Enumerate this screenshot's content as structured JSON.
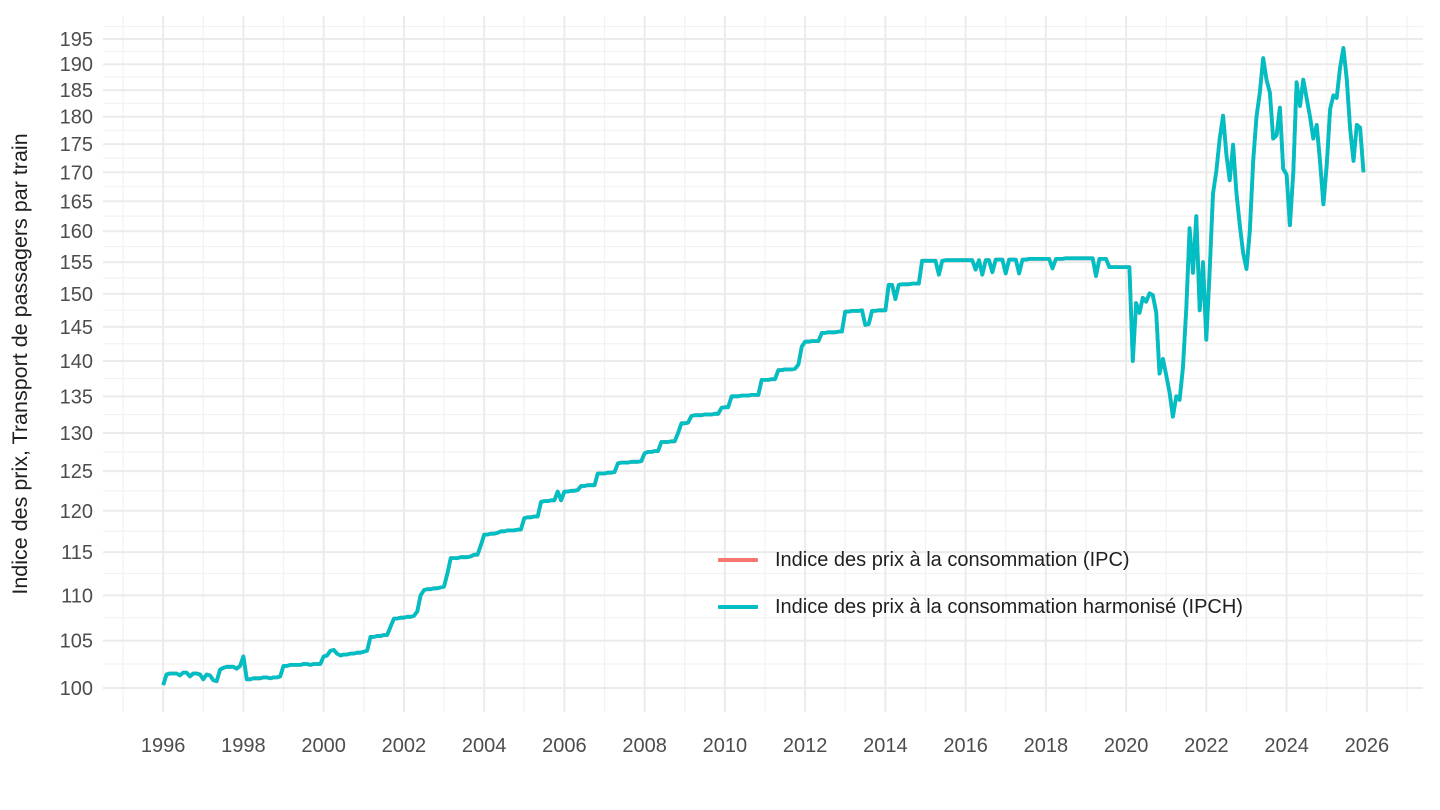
{
  "figure": {
    "legend": {
      "items": [
        {
          "label": "Indice des prix à la consommation (IPC)",
          "color": "#F8766D"
        },
        {
          "label": "Indice des prix à la consommation harmonisé (IPCH)",
          "color": "#00BFC4"
        }
      ]
    },
    "colors": {
      "background": "#ffffff",
      "grid_major": "#EBEBEB",
      "grid_minor": "#F2F2F2",
      "tick_text": "#4d4d4d",
      "axis_title_text": "#1f1f1f"
    }
  },
  "chart_data": {
    "type": "line",
    "title": "",
    "xlabel": "",
    "ylabel": "Indice des prix, Transport de passagers par train",
    "x_ticks": [
      1996,
      1998,
      2000,
      2002,
      2004,
      2006,
      2008,
      2010,
      2012,
      2014,
      2016,
      2018,
      2020,
      2022,
      2024,
      2026
    ],
    "y_ticks": [
      100,
      105,
      110,
      115,
      120,
      125,
      130,
      135,
      140,
      145,
      150,
      155,
      160,
      165,
      170,
      175,
      180,
      185,
      190,
      195
    ],
    "y_scale": "log",
    "grid": true,
    "legend_position": "inside-right-middle",
    "x_range": [
      1994.5,
      2027.4
    ],
    "y_range": [
      97.56,
      199.66
    ],
    "frequency": "monthly",
    "start_year": 1996,
    "end_label": "2025-12",
    "series": [
      {
        "name": "Indice des prix à la consommation (IPC)",
        "color": "#F8766D",
        "fully_occluded_by_ipch": true,
        "values": [
          100.3,
          101.4,
          101.5,
          101.5,
          101.5,
          101.3,
          101.6,
          101.6,
          101.2,
          101.5,
          101.5,
          101.4,
          100.9,
          101.4,
          101.3,
          100.8,
          100.7,
          101.9,
          102.1,
          102.2,
          102.2,
          102.2,
          102.0,
          102.3,
          103.3,
          100.9,
          100.9,
          101.0,
          101.0,
          101.0,
          101.1,
          101.1,
          101.0,
          101.1,
          101.1,
          101.2,
          102.3,
          102.3,
          102.4,
          102.4,
          102.4,
          102.4,
          102.5,
          102.5,
          102.4,
          102.5,
          102.5,
          102.5,
          103.3,
          103.4,
          103.9,
          104.0,
          103.6,
          103.4,
          103.5,
          103.5,
          103.6,
          103.6,
          103.7,
          103.7,
          103.8,
          103.9,
          105.4,
          105.4,
          105.5,
          105.5,
          105.6,
          105.6,
          106.5,
          107.4,
          107.4,
          107.5,
          107.5,
          107.6,
          107.6,
          107.7,
          108.2,
          110.0,
          110.6,
          110.7,
          110.7,
          110.8,
          110.8,
          110.9,
          111.0,
          112.5,
          114.3,
          114.3,
          114.3,
          114.4,
          114.4,
          114.4,
          114.5,
          114.7,
          114.7,
          115.8,
          117.1,
          117.1,
          117.2,
          117.2,
          117.3,
          117.5,
          117.5,
          117.6,
          117.6,
          117.6,
          117.7,
          117.7,
          119.1,
          119.2,
          119.2,
          119.3,
          119.3,
          121.1,
          121.2,
          121.2,
          121.3,
          121.3,
          122.4,
          121.3,
          122.4,
          122.4,
          122.5,
          122.5,
          122.6,
          123.1,
          123.1,
          123.2,
          123.2,
          123.2,
          124.7,
          124.7,
          124.7,
          124.8,
          124.8,
          124.9,
          126.0,
          126.1,
          126.1,
          126.1,
          126.2,
          126.2,
          126.2,
          126.3,
          127.3,
          127.5,
          127.5,
          127.6,
          127.6,
          128.8,
          128.8,
          128.8,
          128.9,
          128.9,
          130.0,
          131.3,
          131.3,
          131.4,
          132.3,
          132.4,
          132.4,
          132.4,
          132.5,
          132.5,
          132.5,
          132.6,
          132.6,
          133.4,
          133.5,
          133.5,
          135.0,
          135.0,
          135.0,
          135.1,
          135.1,
          135.1,
          135.2,
          135.2,
          135.2,
          137.3,
          137.3,
          137.3,
          137.4,
          137.4,
          138.7,
          138.7,
          138.8,
          138.8,
          138.8,
          138.9,
          139.5,
          142.1,
          142.8,
          142.8,
          142.9,
          142.9,
          142.9,
          144.1,
          144.1,
          144.2,
          144.2,
          144.2,
          144.3,
          144.3,
          147.3,
          147.3,
          147.4,
          147.4,
          147.4,
          147.5,
          145.3,
          145.4,
          147.4,
          147.4,
          147.5,
          147.5,
          147.5,
          151.4,
          151.4,
          149.2,
          151.4,
          151.5,
          151.5,
          151.5,
          151.6,
          151.6,
          151.6,
          155.2,
          155.2,
          155.2,
          155.2,
          155.2,
          153.0,
          155.2,
          155.3,
          155.3,
          155.3,
          155.3,
          155.3,
          155.3,
          155.3,
          155.3,
          155.3,
          153.8,
          155.3,
          153.0,
          155.3,
          155.3,
          153.4,
          155.4,
          155.4,
          155.4,
          153.2,
          155.4,
          155.4,
          155.4,
          153.2,
          155.4,
          155.4,
          155.5,
          155.5,
          155.5,
          155.5,
          155.5,
          155.5,
          155.5,
          154.0,
          155.5,
          155.5,
          155.5,
          155.6,
          155.6,
          155.6,
          155.6,
          155.6,
          155.6,
          155.6,
          155.6,
          155.6,
          152.8,
          155.5,
          155.5,
          155.5,
          154.2,
          154.2,
          154.2,
          154.2,
          154.2,
          154.2,
          154.2,
          140.0,
          148.6,
          147.1,
          149.4,
          148.8,
          150.1,
          149.8,
          147.2,
          138.2,
          140.3,
          138.0,
          135.5,
          132.2,
          135.0,
          134.5,
          139.0,
          147.8,
          160.5,
          153.3,
          162.5,
          147.5,
          155.0,
          143.1,
          153.7,
          166.3,
          170.3,
          176.0,
          180.2,
          173.1,
          168.6,
          174.9,
          166.5,
          161.0,
          156.5,
          153.9,
          160.0,
          172.0,
          180.0,
          184.5,
          191.2,
          187.0,
          184.5,
          176.0,
          176.6,
          181.7,
          170.6,
          169.6,
          161.0,
          170.0,
          186.5,
          182.0,
          187.0,
          183.5,
          180.0,
          176.0,
          178.5,
          172.0,
          164.5,
          171.2,
          181.4,
          184.0,
          183.5,
          189.4,
          193.2,
          187.0,
          177.8,
          172.0,
          178.5,
          178.0,
          170.0
        ]
      },
      {
        "name": "Indice des prix à la consommation harmonisé (IPCH)",
        "color": "#00BFC4",
        "values": [
          100.3,
          101.4,
          101.5,
          101.5,
          101.5,
          101.3,
          101.6,
          101.6,
          101.2,
          101.5,
          101.5,
          101.4,
          100.9,
          101.4,
          101.3,
          100.8,
          100.7,
          101.9,
          102.1,
          102.2,
          102.2,
          102.2,
          102.0,
          102.3,
          103.3,
          100.9,
          100.9,
          101.0,
          101.0,
          101.0,
          101.1,
          101.1,
          101.0,
          101.1,
          101.1,
          101.2,
          102.3,
          102.3,
          102.4,
          102.4,
          102.4,
          102.4,
          102.5,
          102.5,
          102.4,
          102.5,
          102.5,
          102.5,
          103.3,
          103.4,
          103.9,
          104.0,
          103.6,
          103.4,
          103.5,
          103.5,
          103.6,
          103.6,
          103.7,
          103.7,
          103.8,
          103.9,
          105.4,
          105.4,
          105.5,
          105.5,
          105.6,
          105.6,
          106.5,
          107.4,
          107.4,
          107.5,
          107.5,
          107.6,
          107.6,
          107.7,
          108.2,
          110.0,
          110.6,
          110.7,
          110.7,
          110.8,
          110.8,
          110.9,
          111.0,
          112.5,
          114.3,
          114.3,
          114.3,
          114.4,
          114.4,
          114.4,
          114.5,
          114.7,
          114.7,
          115.8,
          117.1,
          117.1,
          117.2,
          117.2,
          117.3,
          117.5,
          117.5,
          117.6,
          117.6,
          117.6,
          117.7,
          117.7,
          119.1,
          119.2,
          119.2,
          119.3,
          119.3,
          121.1,
          121.2,
          121.2,
          121.3,
          121.3,
          122.4,
          121.3,
          122.4,
          122.4,
          122.5,
          122.5,
          122.6,
          123.1,
          123.1,
          123.2,
          123.2,
          123.2,
          124.7,
          124.7,
          124.7,
          124.8,
          124.8,
          124.9,
          126.0,
          126.1,
          126.1,
          126.1,
          126.2,
          126.2,
          126.2,
          126.3,
          127.3,
          127.5,
          127.5,
          127.6,
          127.6,
          128.8,
          128.8,
          128.8,
          128.9,
          128.9,
          130.0,
          131.3,
          131.3,
          131.4,
          132.3,
          132.4,
          132.4,
          132.4,
          132.5,
          132.5,
          132.5,
          132.6,
          132.6,
          133.4,
          133.5,
          133.5,
          135.0,
          135.0,
          135.0,
          135.1,
          135.1,
          135.1,
          135.2,
          135.2,
          135.2,
          137.3,
          137.3,
          137.3,
          137.4,
          137.4,
          138.7,
          138.7,
          138.8,
          138.8,
          138.8,
          138.9,
          139.5,
          142.1,
          142.8,
          142.8,
          142.9,
          142.9,
          142.9,
          144.1,
          144.1,
          144.2,
          144.2,
          144.2,
          144.3,
          144.3,
          147.3,
          147.3,
          147.4,
          147.4,
          147.4,
          147.5,
          145.3,
          145.4,
          147.4,
          147.4,
          147.5,
          147.5,
          147.5,
          151.4,
          151.4,
          149.2,
          151.4,
          151.5,
          151.5,
          151.5,
          151.6,
          151.6,
          151.6,
          155.2,
          155.2,
          155.2,
          155.2,
          155.2,
          153.0,
          155.2,
          155.3,
          155.3,
          155.3,
          155.3,
          155.3,
          155.3,
          155.3,
          155.3,
          155.3,
          153.8,
          155.3,
          153.0,
          155.3,
          155.3,
          153.4,
          155.4,
          155.4,
          155.4,
          153.2,
          155.4,
          155.4,
          155.4,
          153.2,
          155.4,
          155.4,
          155.5,
          155.5,
          155.5,
          155.5,
          155.5,
          155.5,
          155.5,
          154.0,
          155.5,
          155.5,
          155.5,
          155.6,
          155.6,
          155.6,
          155.6,
          155.6,
          155.6,
          155.6,
          155.6,
          155.6,
          152.8,
          155.5,
          155.5,
          155.5,
          154.2,
          154.2,
          154.2,
          154.2,
          154.2,
          154.2,
          154.2,
          140.0,
          148.6,
          147.1,
          149.4,
          148.8,
          150.1,
          149.8,
          147.2,
          138.2,
          140.3,
          138.0,
          135.5,
          132.2,
          135.0,
          134.5,
          139.0,
          147.8,
          160.5,
          153.3,
          162.5,
          147.5,
          155.0,
          143.1,
          153.7,
          166.3,
          170.3,
          176.0,
          180.2,
          173.1,
          168.6,
          174.9,
          166.5,
          161.0,
          156.5,
          153.9,
          160.0,
          172.0,
          180.0,
          184.5,
          191.2,
          187.0,
          184.5,
          176.0,
          176.6,
          181.7,
          170.6,
          169.6,
          161.0,
          170.0,
          186.5,
          182.0,
          187.0,
          183.5,
          180.0,
          176.0,
          178.5,
          172.0,
          164.5,
          171.2,
          181.4,
          184.0,
          183.5,
          189.4,
          193.2,
          187.0,
          177.8,
          172.0,
          178.5,
          178.0,
          170.0
        ]
      }
    ]
  }
}
